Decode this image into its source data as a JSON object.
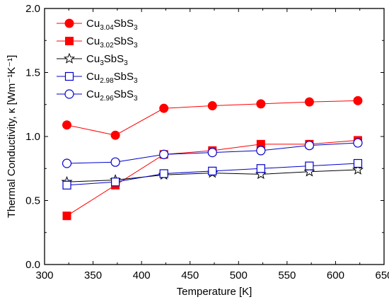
{
  "chart_data": {
    "type": "line",
    "xlabel": "Temperature [K]",
    "ylabel": "Thermal Conductivity, κ [Wm⁻¹K⁻¹]",
    "xlim": [
      300,
      650
    ],
    "ylim": [
      0.0,
      2.0
    ],
    "xticks": [
      "300",
      "350",
      "400",
      "450",
      "500",
      "550",
      "600",
      "650"
    ],
    "yticks": [
      "0.0",
      "0.5",
      "1.0",
      "1.5",
      "2.0"
    ],
    "legend_position": "top-left",
    "series": [
      {
        "name": "Cu3.04SbS3",
        "name_parts": [
          {
            "t": "Cu",
            "s": false
          },
          {
            "t": "3.04",
            "s": true
          },
          {
            "t": "SbS",
            "s": false
          },
          {
            "t": "3",
            "s": true
          }
        ],
        "marker": "filled-circle",
        "color": "#ff0000",
        "x": [
          323,
          373,
          423,
          473,
          523,
          573,
          623
        ],
        "y": [
          1.09,
          1.01,
          1.22,
          1.24,
          1.255,
          1.27,
          1.28
        ]
      },
      {
        "name": "Cu3.02SbS3",
        "name_parts": [
          {
            "t": "Cu",
            "s": false
          },
          {
            "t": "3.02",
            "s": true
          },
          {
            "t": "SbS",
            "s": false
          },
          {
            "t": "3",
            "s": true
          }
        ],
        "marker": "filled-square",
        "color": "#ff0000",
        "x": [
          323,
          373,
          423,
          473,
          523,
          573,
          623
        ],
        "y": [
          0.38,
          0.62,
          0.86,
          0.89,
          0.94,
          0.94,
          0.97
        ]
      },
      {
        "name": "Cu3SbS3",
        "name_parts": [
          {
            "t": "Cu",
            "s": false
          },
          {
            "t": "3",
            "s": true
          },
          {
            "t": "SbS",
            "s": false
          },
          {
            "t": "3",
            "s": true
          }
        ],
        "marker": "open-star",
        "color": "#000000",
        "x": [
          323,
          373,
          423,
          473,
          523,
          573,
          623
        ],
        "y": [
          0.645,
          0.66,
          0.7,
          0.715,
          0.705,
          0.725,
          0.74
        ]
      },
      {
        "name": "Cu2.98SbS3",
        "name_parts": [
          {
            "t": "Cu",
            "s": false
          },
          {
            "t": "2.98",
            "s": true
          },
          {
            "t": "SbS",
            "s": false
          },
          {
            "t": "3",
            "s": true
          }
        ],
        "marker": "open-square",
        "color": "#0000cc",
        "x": [
          323,
          373,
          423,
          473,
          523,
          573,
          623
        ],
        "y": [
          0.62,
          0.645,
          0.71,
          0.73,
          0.75,
          0.77,
          0.79
        ]
      },
      {
        "name": "Cu2.96SbS3",
        "name_parts": [
          {
            "t": "Cu",
            "s": false
          },
          {
            "t": "2.96",
            "s": true
          },
          {
            "t": "SbS",
            "s": false
          },
          {
            "t": "3",
            "s": true
          }
        ],
        "marker": "open-circle",
        "color": "#0000cc",
        "x": [
          323,
          373,
          423,
          473,
          523,
          573,
          623
        ],
        "y": [
          0.79,
          0.8,
          0.86,
          0.875,
          0.89,
          0.93,
          0.95
        ]
      }
    ]
  }
}
